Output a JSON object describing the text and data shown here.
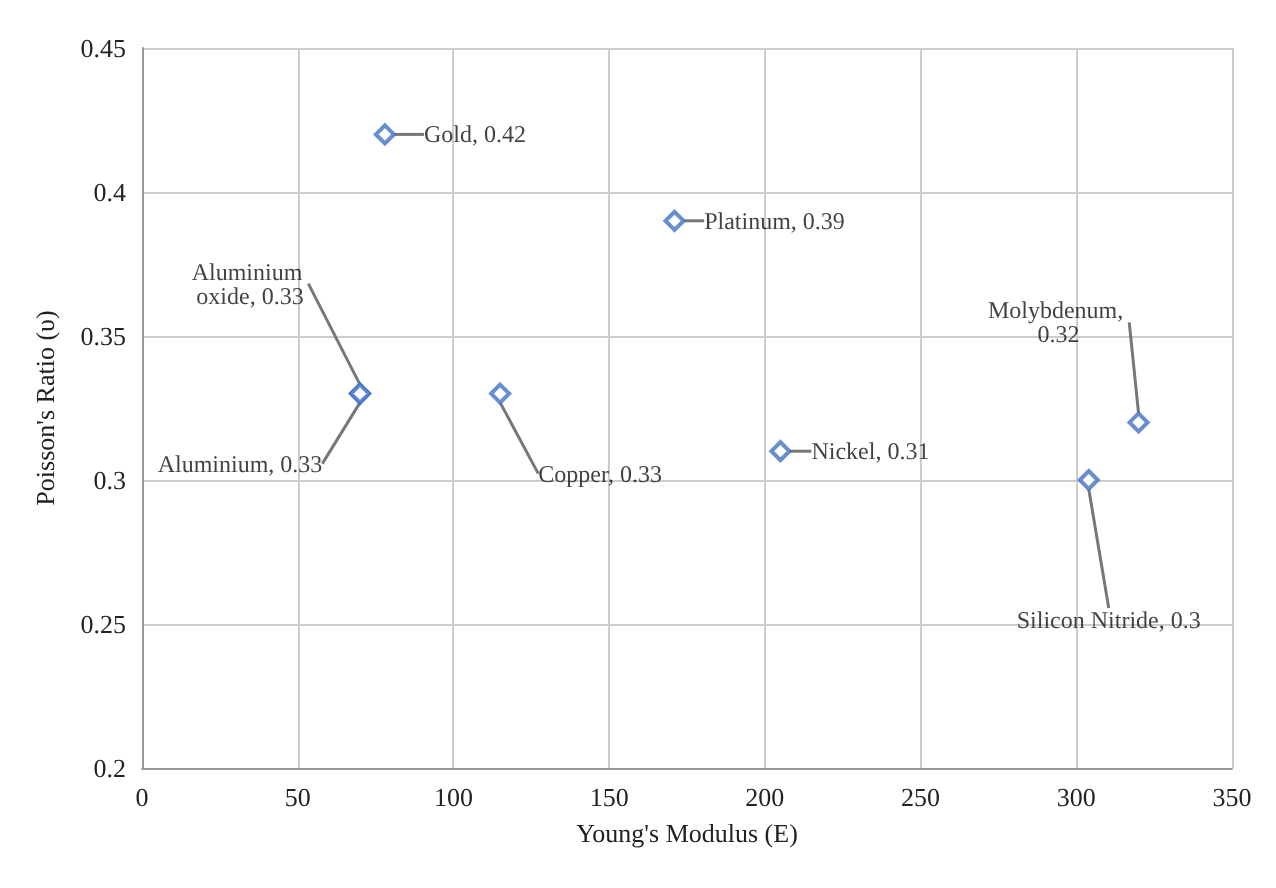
{
  "chart_data": {
    "type": "scatter",
    "xlabel": "Young's Modulus (E)",
    "ylabel": "Poisson's Ratio (υ)",
    "x": [
      78,
      171,
      70,
      70,
      115,
      205,
      320,
      304
    ],
    "values": [
      0.42,
      0.39,
      0.33,
      0.33,
      0.33,
      0.31,
      0.32,
      0.3
    ],
    "value_labels": [
      "Gold, 0.42",
      "Platinum, 0.39",
      "Aluminium oxide, 0.33",
      "Aluminium, 0.33",
      "Copper, 0.33",
      "Nickel, 0.31",
      "Molybdenum, 0.32",
      "Silicon Nitride, 0.3"
    ],
    "color": "#4472c4",
    "marker": "diamond",
    "grid": true,
    "xlim": [
      0,
      350
    ],
    "xticks": [
      0,
      50,
      100,
      150,
      200,
      250,
      300,
      350
    ],
    "ylim": [
      0.2,
      0.45
    ],
    "yticks": [
      0.2,
      0.25,
      0.3,
      0.35,
      0.4,
      0.45
    ]
  }
}
